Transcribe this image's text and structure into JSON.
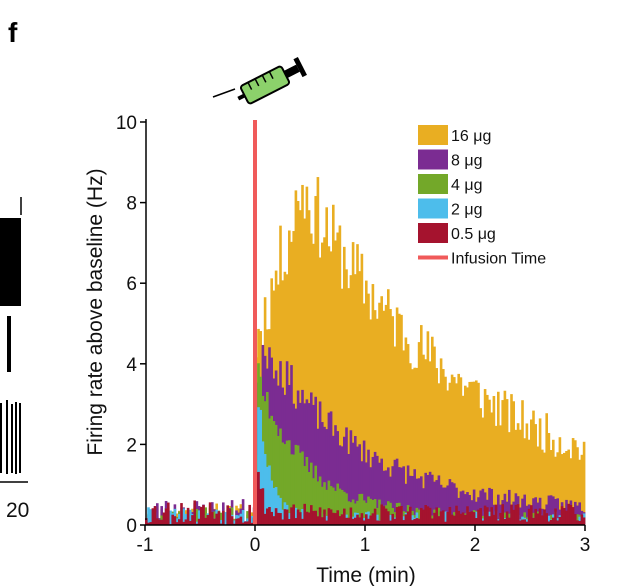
{
  "panel_label": "f",
  "edge_fragment_label": "20",
  "colors": {
    "16ug": "#E9AE22",
    "8ug": "#7B2C92",
    "4ug": "#73A829",
    "2ug": "#4DBDEB",
    "0_5ug": "#A5132E",
    "infusion": "#F05A5A",
    "syringe": "#8CD16B"
  },
  "chart_data": {
    "type": "histogram",
    "title": "",
    "xlabel": "Time (min)",
    "ylabel": "Firing rate above baseline (Hz)",
    "xlim": [
      -1,
      3
    ],
    "ylim": [
      0,
      10
    ],
    "xticks": [
      -1,
      0,
      1,
      2,
      3
    ],
    "yticks": [
      0,
      2,
      4,
      6,
      8,
      10
    ],
    "bin_width_min": 0.02,
    "infusion_time": 0,
    "series": [
      {
        "name": "16 μg",
        "color_key": "16ug",
        "pre": 0.25,
        "peak": 8.2,
        "tau": 1.6,
        "t_peak": 0.4,
        "noise": 0.75,
        "seed": 11
      },
      {
        "name": "8 μg",
        "color_key": "8ug",
        "pre": 0.3,
        "peak": 4.3,
        "tau": 0.9,
        "t_peak": 0.05,
        "noise": 0.4,
        "seed": 23
      },
      {
        "name": "4 μg",
        "color_key": "4ug",
        "pre": 0.2,
        "peak": 3.4,
        "tau": 0.45,
        "t_peak": 0.02,
        "noise": 0.3,
        "seed": 37
      },
      {
        "name": "2 μg",
        "color_key": "2ug",
        "pre": 0.2,
        "peak": 2.8,
        "tau": 0.1,
        "t_peak": 0.02,
        "noise": 0.3,
        "seed": 41
      },
      {
        "name": "0.5 μg",
        "color_key": "0_5ug",
        "pre": 0.3,
        "peak": 1.2,
        "tau": 0.05,
        "t_peak": 0.0,
        "noise": 0.35,
        "seed": 53
      }
    ],
    "legend": [
      {
        "label": "16 μg",
        "color_key": "16ug",
        "kind": "patch"
      },
      {
        "label": "8 μg",
        "color_key": "8ug",
        "kind": "patch"
      },
      {
        "label": "4 μg",
        "color_key": "4ug",
        "kind": "patch"
      },
      {
        "label": "2 μg",
        "color_key": "2ug",
        "kind": "patch"
      },
      {
        "label": "0.5 μg",
        "color_key": "0_5ug",
        "kind": "patch"
      },
      {
        "label": "Infusion Time",
        "color_key": "infusion",
        "kind": "line"
      }
    ],
    "legend_position": "top-right"
  }
}
